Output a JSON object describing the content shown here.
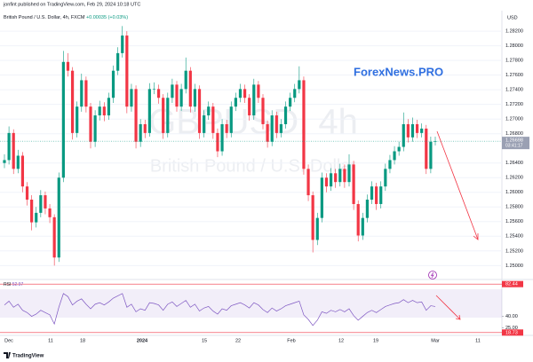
{
  "header": {
    "published": "jonfint published on TradingView.com, Feb 29, 2024 10:18 UTC",
    "footer": "TradingView",
    "watermark_symbol": "GBPUSD, 4h",
    "watermark_name": "British Pound / U.S. Dollar",
    "overlay": "ForexNews.PRO"
  },
  "chart_data": [
    {
      "type": "candlestick",
      "title": "British Pound / U.S. Dollar, 4h, FXCM",
      "change": {
        "value": 0.00035,
        "label": "+0.00035"
      },
      "change_pct": {
        "value": 0.03,
        "label": "(+0.03%)"
      },
      "currency": "USD",
      "last_price": 1.26698,
      "countdown": "03:41:17",
      "up_color": "#089981",
      "down_color": "#f23645",
      "grid": true,
      "xtick_labels": [
        "Dec",
        "11",
        "18",
        "2024",
        "15",
        "22",
        "Feb",
        "12",
        "19",
        "Mar",
        "11"
      ],
      "ylim": [
        1.2481,
        1.2848
      ],
      "yticks": [
        {
          "value": 1.282,
          "label": "1.28200"
        },
        {
          "value": 1.28,
          "label": "1.28000"
        },
        {
          "value": 1.278,
          "label": "1.27800"
        },
        {
          "value": 1.276,
          "label": "1.27600"
        },
        {
          "value": 1.274,
          "label": "1.27400"
        },
        {
          "value": 1.272,
          "label": "1.27200"
        },
        {
          "value": 1.27,
          "label": "1.27000"
        },
        {
          "value": 1.268,
          "label": "1.26800"
        },
        {
          "value": 1.264,
          "label": "1.26400"
        },
        {
          "value": 1.262,
          "label": "1.26200"
        },
        {
          "value": 1.26,
          "label": "1.26000"
        },
        {
          "value": 1.258,
          "label": "1.25800"
        },
        {
          "value": 1.256,
          "label": "1.25600"
        },
        {
          "value": 1.254,
          "label": "1.25400"
        },
        {
          "value": 1.252,
          "label": "1.25200"
        },
        {
          "value": 1.25,
          "label": "1.25000"
        }
      ],
      "open": [
        1.264,
        1.2644,
        1.2681,
        1.2632,
        1.265,
        1.2608,
        1.259,
        1.2559,
        1.2572,
        1.2596,
        1.2578,
        1.2566,
        1.2511,
        1.262,
        1.2778,
        1.2766,
        1.2681,
        1.2717,
        1.2753,
        1.2717,
        1.2669,
        1.2705,
        1.2717,
        1.2705,
        1.2729,
        1.2766,
        1.279,
        1.2814,
        1.2717,
        1.2741,
        1.2669,
        1.2693,
        1.2681,
        1.2741,
        1.2741,
        1.2729,
        1.2681,
        1.2729,
        1.2747,
        1.2717,
        1.2741,
        1.2766,
        1.2717,
        1.2741,
        1.2681,
        1.2705,
        1.2717,
        1.2681,
        1.2656,
        1.2693,
        1.2681,
        1.2717,
        1.2729,
        1.2741,
        1.2729,
        1.2705,
        1.2747,
        1.2729,
        1.2693,
        1.2669,
        1.2705,
        1.2681,
        1.2693,
        1.2717,
        1.2729,
        1.2741,
        1.2753,
        1.2632,
        1.2596,
        1.2535,
        1.2565,
        1.262,
        1.2608,
        1.2626,
        1.2614,
        1.2632,
        1.2614,
        1.2638,
        1.2584,
        1.2541,
        1.2565,
        1.259,
        1.2608,
        1.2584,
        1.2608,
        1.2632,
        1.2644,
        1.2656,
        1.2662,
        1.2693,
        1.2675,
        1.2693,
        1.2681,
        1.2687,
        1.2632,
        1.2669
      ],
      "high": [
        1.2652,
        1.269,
        1.2686,
        1.2658,
        1.2655,
        1.2614,
        1.2596,
        1.258,
        1.2603,
        1.2601,
        1.2584,
        1.257,
        1.2627,
        1.2793,
        1.279,
        1.2771,
        1.2724,
        1.2762,
        1.2758,
        1.2722,
        1.2712,
        1.2725,
        1.2723,
        1.2736,
        1.2773,
        1.2798,
        1.2827,
        1.282,
        1.2748,
        1.2746,
        1.27,
        1.2699,
        1.2749,
        1.275,
        1.2747,
        1.2734,
        1.2736,
        1.2755,
        1.2752,
        1.2748,
        1.2784,
        1.2771,
        1.2748,
        1.2746,
        1.2712,
        1.2724,
        1.2722,
        1.2687,
        1.27,
        1.2699,
        1.2724,
        1.2736,
        1.2748,
        1.2747,
        1.2734,
        1.2755,
        1.2752,
        1.2734,
        1.2698,
        1.2712,
        1.271,
        1.27,
        1.2724,
        1.2736,
        1.2748,
        1.2772,
        1.2758,
        1.2638,
        1.2601,
        1.2572,
        1.2627,
        1.2626,
        1.2633,
        1.2632,
        1.2639,
        1.2638,
        1.2652,
        1.2643,
        1.2589,
        1.2572,
        1.2597,
        1.2615,
        1.2613,
        1.2615,
        1.2639,
        1.2651,
        1.2663,
        1.2669,
        1.2709,
        1.27,
        1.2702,
        1.2699,
        1.2694,
        1.2692,
        1.2676,
        1.2676
      ],
      "low": [
        1.2633,
        1.2638,
        1.2625,
        1.2626,
        1.26,
        1.2582,
        1.2548,
        1.2552,
        1.2566,
        1.257,
        1.2558,
        1.25,
        1.2505,
        1.2614,
        1.2758,
        1.2672,
        1.2675,
        1.271,
        1.2709,
        1.266,
        1.2662,
        1.2698,
        1.2697,
        1.2699,
        1.2722,
        1.276,
        1.2784,
        1.2708,
        1.271,
        1.266,
        1.2662,
        1.2674,
        1.2676,
        1.2734,
        1.2721,
        1.2673,
        1.2675,
        1.2722,
        1.271,
        1.2711,
        1.2735,
        1.2709,
        1.271,
        1.2673,
        1.2675,
        1.2699,
        1.2673,
        1.2648,
        1.265,
        1.2674,
        1.2675,
        1.2711,
        1.2723,
        1.2722,
        1.2698,
        1.2699,
        1.2722,
        1.2686,
        1.2661,
        1.2663,
        1.2674,
        1.2675,
        1.2687,
        1.2711,
        1.2723,
        1.2735,
        1.2624,
        1.2588,
        1.2518,
        1.2528,
        1.2559,
        1.26,
        1.2602,
        1.2606,
        1.2608,
        1.2606,
        1.2608,
        1.2576,
        1.2533,
        1.2535,
        1.2559,
        1.2584,
        1.2576,
        1.2578,
        1.2602,
        1.2626,
        1.2638,
        1.265,
        1.2656,
        1.2668,
        1.2669,
        1.2674,
        1.2675,
        1.2625,
        1.2626,
        1.2664
      ],
      "close": [
        1.2644,
        1.2681,
        1.2632,
        1.265,
        1.2608,
        1.259,
        1.2559,
        1.2572,
        1.2596,
        1.2578,
        1.2566,
        1.2511,
        1.262,
        1.2778,
        1.2766,
        1.2681,
        1.2717,
        1.2753,
        1.2717,
        1.2669,
        1.2705,
        1.2717,
        1.2705,
        1.2729,
        1.2766,
        1.279,
        1.2814,
        1.2717,
        1.2741,
        1.2669,
        1.2693,
        1.2681,
        1.2741,
        1.2741,
        1.2729,
        1.2681,
        1.2729,
        1.2747,
        1.2717,
        1.2741,
        1.2766,
        1.2717,
        1.2741,
        1.2681,
        1.2705,
        1.2717,
        1.2681,
        1.2656,
        1.2693,
        1.2681,
        1.2717,
        1.2729,
        1.2741,
        1.2729,
        1.2705,
        1.2747,
        1.2729,
        1.2693,
        1.2669,
        1.2705,
        1.2681,
        1.2693,
        1.2717,
        1.2729,
        1.2741,
        1.2753,
        1.2632,
        1.2596,
        1.2535,
        1.2565,
        1.262,
        1.2608,
        1.2626,
        1.2614,
        1.2632,
        1.2614,
        1.2638,
        1.2584,
        1.2541,
        1.2565,
        1.259,
        1.2608,
        1.2584,
        1.2608,
        1.2632,
        1.2644,
        1.2656,
        1.2662,
        1.2693,
        1.2675,
        1.2693,
        1.2681,
        1.2687,
        1.2632,
        1.2669,
        1.26698
      ]
    },
    {
      "type": "line",
      "ylim": [
        15,
        85
      ],
      "yticks": [
        {
          "value": 40,
          "label": "40.00"
        },
        {
          "value": 25,
          "label": "25.00"
        }
      ],
      "levels": [
        {
          "value": 82.44,
          "label": "82.44"
        },
        {
          "value": 18.73,
          "label": "18.73"
        }
      ],
      "level_color": "#f23645",
      "series": [
        {
          "name": "RSI",
          "color": "#7e57c2",
          "values": [
            55,
            60,
            52,
            56,
            48,
            45,
            40,
            43,
            48,
            45,
            42,
            30,
            52,
            70,
            66,
            55,
            60,
            63,
            56,
            50,
            56,
            58,
            55,
            59,
            64,
            67,
            70,
            52,
            56,
            46,
            50,
            48,
            58,
            57,
            55,
            48,
            56,
            59,
            53,
            57,
            61,
            52,
            56,
            47,
            51,
            53,
            47,
            43,
            50,
            48,
            54,
            56,
            58,
            55,
            51,
            58,
            55,
            49,
            45,
            51,
            47,
            50,
            54,
            56,
            58,
            60,
            42,
            36,
            28,
            35,
            46,
            44,
            48,
            46,
            49,
            46,
            50,
            41,
            35,
            40,
            45,
            48,
            45,
            49,
            53,
            55,
            57,
            58,
            62,
            58,
            61,
            58,
            59,
            48,
            54,
            52.97
          ]
        }
      ]
    }
  ]
}
